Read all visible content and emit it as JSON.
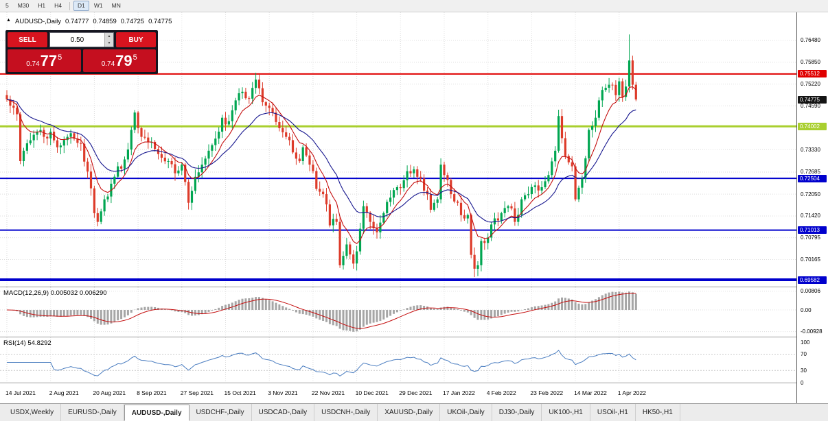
{
  "toolbar": {
    "timeframes": [
      "5",
      "M30",
      "H1",
      "H4",
      "D1",
      "W1",
      "MN"
    ],
    "active": "D1",
    "separator_before": "D1"
  },
  "icons": {
    "volume_up": "▲",
    "volume_down": "▼",
    "collapse": "▲"
  },
  "chart": {
    "symbol_title": "AUDUSD-,Daily",
    "ohlc": {
      "open": "0.74777",
      "high": "0.74859",
      "low": "0.74725",
      "close": "0.74775"
    },
    "trade_panel": {
      "sell_label": "SELL",
      "buy_label": "BUY",
      "volume": "0.50",
      "bid": {
        "prefix": "0.74",
        "big": "77",
        "sup": "5"
      },
      "ask": {
        "prefix": "0.74",
        "big": "79",
        "sup": "5"
      }
    }
  },
  "macd": {
    "title": "MACD(12,26,9) 0.005032 0.006290"
  },
  "rsi": {
    "title": "RSI(14) 54.8292"
  },
  "date_axis": [
    "14 Jul 2021",
    "2 Aug 2021",
    "20 Aug 2021",
    "8 Sep 2021",
    "27 Sep 2021",
    "15 Oct 2021",
    "3 Nov 2021",
    "22 Nov 2021",
    "10 Dec 2021",
    "29 Dec 2021",
    "17 Jan 2022",
    "4 Feb 2022",
    "23 Feb 2022",
    "14 Mar 2022",
    "1 Apr 2022"
  ],
  "tabs": {
    "items": [
      "USDX,Weekly",
      "EURUSD-,Daily",
      "AUDUSD-,Daily",
      "USDCHF-,Daily",
      "USDCAD-,Daily",
      "USDCNH-,Daily",
      "XAUUSD-,Daily",
      "UKOil-,Daily",
      "DJ30-,Daily",
      "UK100-,H1",
      "USOil-,H1",
      "HK50-,H1"
    ],
    "active": "AUDUSD-,Daily"
  },
  "chart_data": {
    "type": "candlestick",
    "symbol": "AUDUSD-",
    "timeframe": "Daily",
    "bars": 188,
    "bars_per_tick": 13,
    "ohlc_current": {
      "open": 0.74777,
      "high": 0.74859,
      "low": 0.74725,
      "close": 0.74775
    },
    "current_price": 0.74775,
    "y_axis_ticks": [
      0.7648,
      0.7585,
      0.7522,
      0.7459,
      0.7333,
      0.72685,
      0.7205,
      0.7142,
      0.70795,
      0.70165
    ],
    "horizontal_levels": [
      {
        "price": 0.75512,
        "color": "#e00000",
        "width": 2
      },
      {
        "price": 0.74002,
        "color": "#a9cf2f",
        "width": 3
      },
      {
        "price": 0.72504,
        "color": "#0000cd",
        "width": 2
      },
      {
        "price": 0.71013,
        "color": "#0000cd",
        "width": 2
      },
      {
        "price": 0.69582,
        "color": "#0000cd",
        "width": 4
      }
    ],
    "price_path_anchors": [
      [
        0,
        0.7478
      ],
      [
        1,
        0.746
      ],
      [
        3,
        0.7435
      ],
      [
        4,
        0.73
      ],
      [
        5,
        0.733
      ],
      [
        7,
        0.736
      ],
      [
        9,
        0.7385
      ],
      [
        11,
        0.737
      ],
      [
        13,
        0.7385
      ],
      [
        14,
        0.736
      ],
      [
        16,
        0.7345
      ],
      [
        18,
        0.737
      ],
      [
        20,
        0.7365
      ],
      [
        22,
        0.735
      ],
      [
        24,
        0.727
      ],
      [
        26,
        0.715
      ],
      [
        27,
        0.7125
      ],
      [
        29,
        0.719
      ],
      [
        31,
        0.7235
      ],
      [
        33,
        0.7285
      ],
      [
        35,
        0.7305
      ],
      [
        37,
        0.739
      ],
      [
        38,
        0.744
      ],
      [
        40,
        0.737
      ],
      [
        42,
        0.7355
      ],
      [
        44,
        0.7335
      ],
      [
        46,
        0.731
      ],
      [
        48,
        0.73
      ],
      [
        50,
        0.7265
      ],
      [
        52,
        0.729
      ],
      [
        54,
        0.718
      ],
      [
        56,
        0.7255
      ],
      [
        58,
        0.729
      ],
      [
        60,
        0.733
      ],
      [
        62,
        0.7365
      ],
      [
        64,
        0.7425
      ],
      [
        66,
        0.7415
      ],
      [
        68,
        0.7475
      ],
      [
        70,
        0.75
      ],
      [
        72,
        0.748
      ],
      [
        74,
        0.7535
      ],
      [
        75,
        0.751
      ],
      [
        77,
        0.746
      ],
      [
        79,
        0.744
      ],
      [
        81,
        0.7395
      ],
      [
        83,
        0.737
      ],
      [
        85,
        0.7325
      ],
      [
        87,
        0.73
      ],
      [
        88,
        0.734
      ],
      [
        90,
        0.729
      ],
      [
        92,
        0.722
      ],
      [
        94,
        0.7205
      ],
      [
        96,
        0.7115
      ],
      [
        98,
        0.7125
      ],
      [
        99,
        0.7
      ],
      [
        101,
        0.706
      ],
      [
        103,
        0.7005
      ],
      [
        104,
        0.704
      ],
      [
        106,
        0.717
      ],
      [
        108,
        0.7125
      ],
      [
        110,
        0.7095
      ],
      [
        112,
        0.715
      ],
      [
        114,
        0.7195
      ],
      [
        116,
        0.7225
      ],
      [
        118,
        0.7245
      ],
      [
        120,
        0.7265
      ],
      [
        122,
        0.7255
      ],
      [
        124,
        0.7215
      ],
      [
        126,
        0.716
      ],
      [
        128,
        0.719
      ],
      [
        129,
        0.729
      ],
      [
        130,
        0.726
      ],
      [
        132,
        0.7205
      ],
      [
        134,
        0.718
      ],
      [
        136,
        0.7135
      ],
      [
        137,
        0.7145
      ],
      [
        138,
        0.703
      ],
      [
        139,
        0.699
      ],
      [
        140,
        0.7
      ],
      [
        141,
        0.707
      ],
      [
        143,
        0.708
      ],
      [
        145,
        0.7135
      ],
      [
        147,
        0.715
      ],
      [
        149,
        0.717
      ],
      [
        151,
        0.7125
      ],
      [
        153,
        0.719
      ],
      [
        155,
        0.7205
      ],
      [
        157,
        0.723
      ],
      [
        159,
        0.7225
      ],
      [
        161,
        0.726
      ],
      [
        163,
        0.733
      ],
      [
        164,
        0.743
      ],
      [
        166,
        0.7315
      ],
      [
        168,
        0.7285
      ],
      [
        169,
        0.719
      ],
      [
        171,
        0.725
      ],
      [
        173,
        0.739
      ],
      [
        175,
        0.7425
      ],
      [
        177,
        0.7505
      ],
      [
        179,
        0.752
      ],
      [
        181,
        0.749
      ],
      [
        182,
        0.753
      ],
      [
        183,
        0.7485
      ],
      [
        184,
        0.7515
      ],
      [
        185,
        0.759
      ],
      [
        186,
        0.752
      ],
      [
        187,
        0.74775
      ]
    ],
    "spike": {
      "index": 185,
      "high": 0.7665
    },
    "spike_low": {
      "index": 139,
      "low": 0.6966
    },
    "indicators": {
      "macd": {
        "fast": 12,
        "slow": 26,
        "signal": 9,
        "value": 0.005032,
        "signal_value": 0.00629,
        "axis_values": [
          0.00806,
          0,
          -0.00928
        ]
      },
      "rsi": {
        "period": 14,
        "value": 54.8292,
        "axis_values": [
          100,
          70,
          30,
          0
        ]
      }
    }
  }
}
